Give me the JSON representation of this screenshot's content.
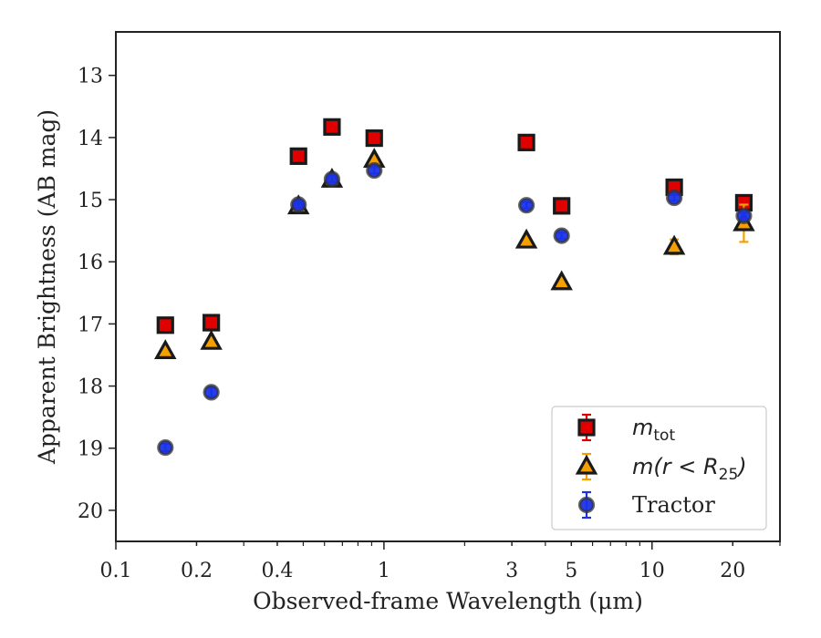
{
  "chart_data": {
    "type": "scatter",
    "title": "",
    "xlabel": "Observed-frame Wavelength (μm)",
    "ylabel": "Apparent Brightness (AB mag)",
    "xscale": "log",
    "xlim": [
      0.1,
      30
    ],
    "ylim": [
      20.5,
      12.3
    ],
    "y_inverted": true,
    "xticks": [
      {
        "value": 0.1,
        "label": "0.1"
      },
      {
        "value": 0.2,
        "label": "0.2"
      },
      {
        "value": 0.4,
        "label": "0.4"
      },
      {
        "value": 1,
        "label": "1"
      },
      {
        "value": 3,
        "label": "3"
      },
      {
        "value": 5,
        "label": "5"
      },
      {
        "value": 10,
        "label": "10"
      },
      {
        "value": 20,
        "label": "20"
      }
    ],
    "yticks": [
      {
        "value": 13,
        "label": "13"
      },
      {
        "value": 14,
        "label": "14"
      },
      {
        "value": 15,
        "label": "15"
      },
      {
        "value": 16,
        "label": "16"
      },
      {
        "value": 17,
        "label": "17"
      },
      {
        "value": 18,
        "label": "18"
      },
      {
        "value": 19,
        "label": "19"
      },
      {
        "value": 20,
        "label": "20"
      }
    ],
    "legend_position": "lower-right",
    "series": [
      {
        "name": "m_tot",
        "legend_main": "m",
        "legend_sub": "tot",
        "marker": "square",
        "color": "#e00000",
        "edge": "#1a1a1a",
        "points": [
          {
            "x": 0.153,
            "y": 17.02,
            "err": 0.05
          },
          {
            "x": 0.227,
            "y": 16.98,
            "err": 0.05
          },
          {
            "x": 0.48,
            "y": 14.3,
            "err": 0.03
          },
          {
            "x": 0.64,
            "y": 13.83,
            "err": 0.03
          },
          {
            "x": 0.92,
            "y": 14.01,
            "err": 0.03
          },
          {
            "x": 3.4,
            "y": 14.08,
            "err": 0.03
          },
          {
            "x": 4.6,
            "y": 15.1,
            "err": 0.03
          },
          {
            "x": 12.1,
            "y": 14.8,
            "err": 0.08
          },
          {
            "x": 22.0,
            "y": 15.05,
            "err": 0.08
          }
        ]
      },
      {
        "name": "m(r < R_25)",
        "legend_main": "m(r < R",
        "legend_sub": "25",
        "legend_tail": ")",
        "marker": "triangle",
        "color": "#f5a000",
        "edge": "#1a1a1a",
        "points": [
          {
            "x": 0.153,
            "y": 17.44,
            "err": 0.05
          },
          {
            "x": 0.227,
            "y": 17.29,
            "err": 0.05
          },
          {
            "x": 0.48,
            "y": 15.11,
            "err": 0.03
          },
          {
            "x": 0.64,
            "y": 14.68,
            "err": 0.03
          },
          {
            "x": 0.92,
            "y": 14.36,
            "err": 0.03
          },
          {
            "x": 3.4,
            "y": 15.66,
            "err": 0.03
          },
          {
            "x": 4.6,
            "y": 16.33,
            "err": 0.03
          },
          {
            "x": 12.1,
            "y": 15.76,
            "err": 0.12
          },
          {
            "x": 22.0,
            "y": 15.38,
            "err": 0.3
          }
        ]
      },
      {
        "name": "Tractor",
        "legend_main": "Tractor",
        "marker": "circle",
        "color": "#1a33e6",
        "edge": "#333333",
        "points": [
          {
            "x": 0.153,
            "y": 18.99,
            "err": 0.06
          },
          {
            "x": 0.227,
            "y": 18.1,
            "err": 0.07
          },
          {
            "x": 0.48,
            "y": 15.08,
            "err": 0.05
          },
          {
            "x": 0.64,
            "y": 14.67,
            "err": 0.05
          },
          {
            "x": 0.92,
            "y": 14.53,
            "err": 0.05
          },
          {
            "x": 3.4,
            "y": 15.09,
            "err": 0.05
          },
          {
            "x": 4.6,
            "y": 15.58,
            "err": 0.05
          },
          {
            "x": 12.1,
            "y": 14.97,
            "err": 0.05
          },
          {
            "x": 22.0,
            "y": 15.26,
            "err": 0.05
          }
        ]
      }
    ]
  }
}
